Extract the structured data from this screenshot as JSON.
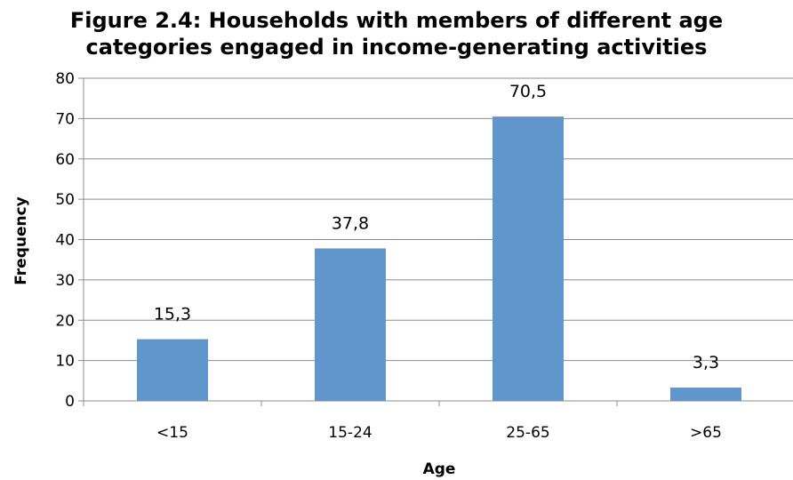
{
  "chart_data": {
    "type": "bar",
    "title_line1": "Figure 2.4: Households with members of different age",
    "title_line2": "categories engaged in income-generating activities",
    "xlabel": "Age",
    "ylabel": "Frequency",
    "categories": [
      "<15",
      "15-24",
      "25-65",
      ">65"
    ],
    "values": [
      15.3,
      37.8,
      70.5,
      3.3
    ],
    "data_labels": [
      "15,3",
      "37,8",
      "70,5",
      "3,3"
    ],
    "ylim": [
      0,
      80
    ],
    "y_ticks": [
      0,
      10,
      20,
      30,
      40,
      50,
      60,
      70,
      80
    ],
    "grid": true,
    "legend": "none",
    "bar_color": "#6096CB",
    "grid_color": "#8C8C8C"
  }
}
